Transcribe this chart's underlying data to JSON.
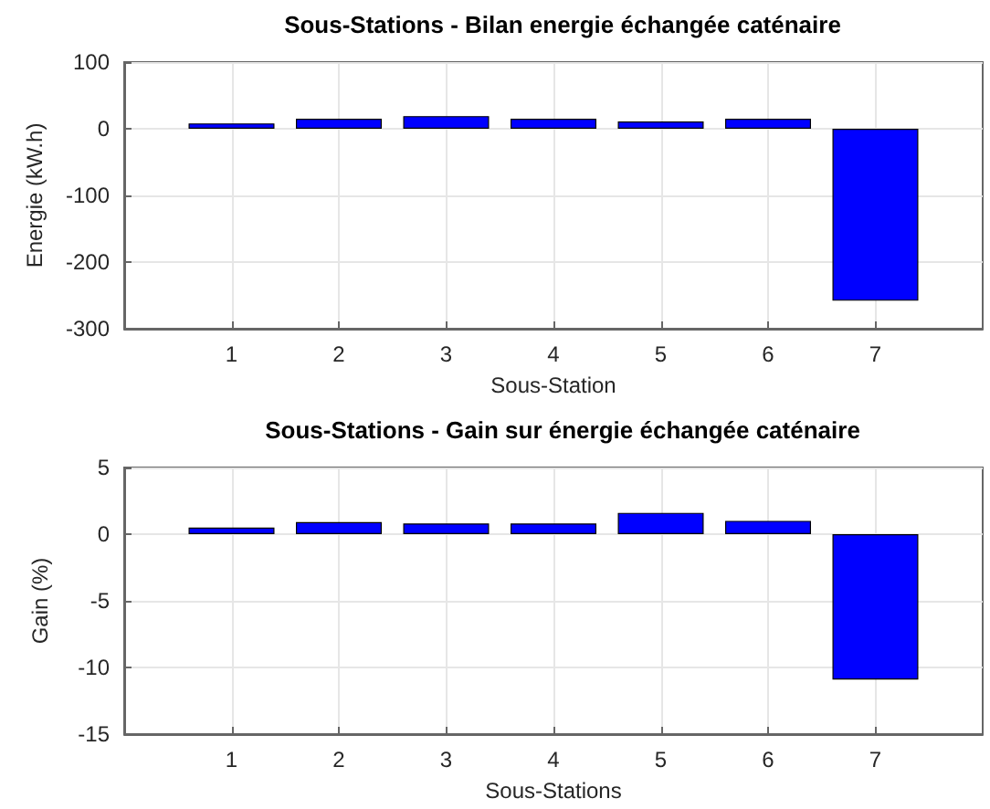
{
  "chart_data": [
    {
      "type": "bar",
      "title": "Sous-Stations - Bilan energie échangée caténaire",
      "xlabel": "Sous-Station",
      "ylabel": "Energie (kW.h)",
      "x": [
        1,
        2,
        3,
        4,
        5,
        6,
        7
      ],
      "values": [
        8,
        15,
        19,
        15,
        11,
        15,
        -258
      ],
      "color": "#0000ff",
      "xlim": [
        0,
        8
      ],
      "xticks": [
        1,
        2,
        3,
        4,
        5,
        6,
        7
      ],
      "ylim": [
        -300,
        100
      ],
      "yticks": [
        -300,
        -200,
        -100,
        0,
        100
      ],
      "grid": true
    },
    {
      "type": "bar",
      "title": "Sous-Stations - Gain sur énergie échangée caténaire",
      "xlabel": "Sous-Stations",
      "ylabel": "Gain (%)",
      "x": [
        1,
        2,
        3,
        4,
        5,
        6,
        7
      ],
      "values": [
        0.5,
        0.9,
        0.8,
        0.8,
        1.6,
        1.0,
        -10.9
      ],
      "color": "#0000ff",
      "xlim": [
        0,
        8
      ],
      "xticks": [
        1,
        2,
        3,
        4,
        5,
        6,
        7
      ],
      "ylim": [
        -15,
        5
      ],
      "yticks": [
        -15,
        -10,
        -5,
        0,
        5
      ],
      "grid": true
    }
  ]
}
